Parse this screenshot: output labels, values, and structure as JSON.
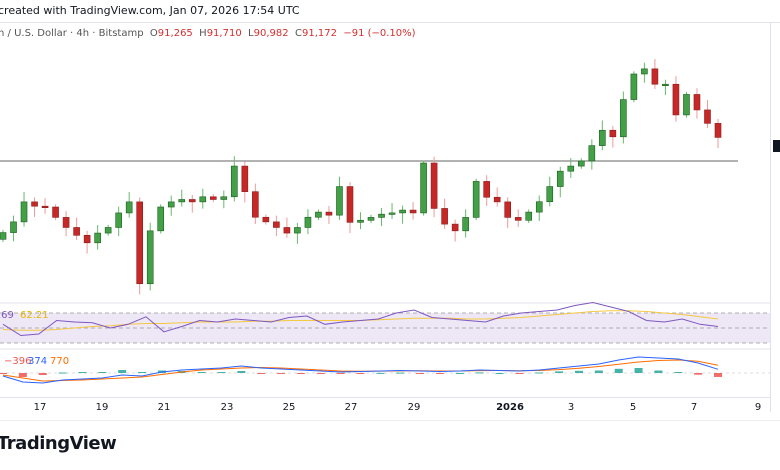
{
  "header": {
    "title": "created with TradingView.com, Jan 07, 2026 17:54 UTC"
  },
  "legend": {
    "symbol": "n / U.S. Dollar · 4h · Bitstamp",
    "o_label": "O",
    "o": "91,265",
    "h_label": "H",
    "h": "91,710",
    "l_label": "L",
    "l": "90,982",
    "c_label": "C",
    "c": "91,172",
    "change": "−91 (−0.10%)"
  },
  "rsi": {
    "value": ".69",
    "ma": "62.21",
    "series": [
      55,
      40,
      42,
      60,
      58,
      57,
      50,
      55,
      65,
      45,
      52,
      60,
      58,
      62,
      60,
      58,
      64,
      66,
      55,
      58,
      60,
      62,
      70,
      74,
      64,
      62,
      60,
      58,
      66,
      70,
      72,
      74,
      80,
      84,
      78,
      72,
      60,
      58,
      62,
      55,
      52
    ],
    "ma_series": [
      48,
      47,
      47,
      48,
      50,
      52,
      53,
      55,
      56,
      56,
      57,
      58,
      58,
      58,
      59,
      59,
      60,
      60,
      60,
      60,
      60,
      61,
      62,
      63,
      63,
      63,
      62,
      62,
      63,
      64,
      66,
      68,
      70,
      72,
      73,
      73,
      72,
      70,
      68,
      65,
      62
    ]
  },
  "macd": {
    "hist_value": "−396",
    "macd_value": "374",
    "signal_value": "770",
    "macd_series": [
      -300,
      -900,
      -1000,
      -700,
      -600,
      -500,
      -200,
      -300,
      100,
      300,
      400,
      500,
      700,
      500,
      400,
      300,
      200,
      100,
      150,
      200,
      250,
      200,
      150,
      200,
      300,
      250,
      200,
      300,
      500,
      700,
      900,
      1300,
      1600,
      1500,
      1400,
      1000,
      374
    ],
    "signal_series": [
      -200,
      -500,
      -800,
      -750,
      -700,
      -600,
      -500,
      -400,
      -150,
      100,
      300,
      400,
      500,
      550,
      500,
      400,
      300,
      200,
      180,
      190,
      210,
      220,
      200,
      200,
      240,
      250,
      230,
      250,
      340,
      480,
      650,
      880,
      1100,
      1250,
      1300,
      1170,
      770
    ]
  },
  "chart_data": {
    "type": "candlestick",
    "interval": "4h",
    "closes": [
      86922,
      87400,
      88293,
      88100,
      88064,
      87600,
      87150,
      86800,
      86465,
      86900,
      87150,
      87800,
      88293,
      84637,
      87000,
      88064,
      88293,
      88400,
      88293,
      88521,
      88400,
      88521,
      89892,
      88750,
      87607,
      87400,
      87150,
      86900,
      87150,
      87607,
      87836,
      87700,
      88978,
      87379,
      87470,
      87600,
      87744,
      87800,
      87927,
      87800,
      90029,
      88000,
      87300,
      87000,
      87600,
      89207,
      88500,
      88293,
      87600,
      87470,
      87836,
      88300,
      88978,
      89664,
      89892,
      90121,
      90806,
      91492,
      91200,
      92863,
      94005,
      94234,
      93548,
      93548,
      92177,
      93091,
      92400,
      91800,
      91172
    ],
    "horizontal_line": 90121,
    "ylim": [
      84000,
      95300
    ],
    "x_ticks": [
      {
        "label": "17",
        "bold": false
      },
      {
        "label": "19",
        "bold": false
      },
      {
        "label": "21",
        "bold": false
      },
      {
        "label": "23",
        "bold": false
      },
      {
        "label": "25",
        "bold": false
      },
      {
        "label": "27",
        "bold": false
      },
      {
        "label": "29",
        "bold": false
      },
      {
        "label": "2026",
        "bold": true
      },
      {
        "label": "3",
        "bold": false
      },
      {
        "label": "5",
        "bold": false
      },
      {
        "label": "7",
        "bold": false
      },
      {
        "label": "9",
        "bold": false
      }
    ]
  },
  "colors": {
    "up": "#43a047",
    "up_border": "#1b5e20",
    "down": "#c62828",
    "rsi": "#7e57c2",
    "rsi_ma": "#f5c842",
    "macd": "#2962ff",
    "signal": "#ff6d00"
  },
  "footer": {
    "logo": "TradingView"
  }
}
